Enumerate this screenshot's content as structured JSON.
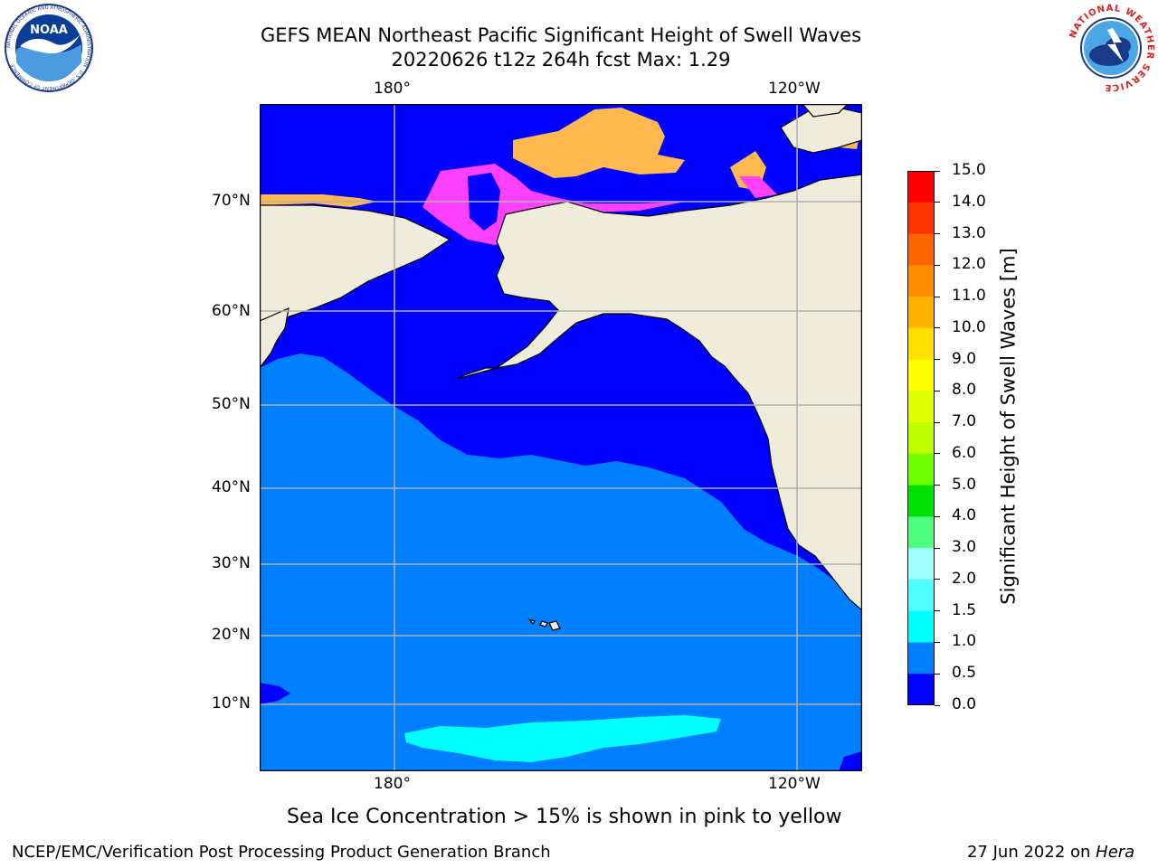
{
  "title": {
    "line1": "GEFS MEAN Northeast Pacific Significant Height of Swell Waves",
    "line2": "20220626 t12z 264h fcst   Max: 1.29"
  },
  "logos": {
    "noaa": {
      "text": "NOAA",
      "ring_text": "NATIONAL OCEANIC AND ATMOSPHERIC ADMINISTRATION · U.S. DEPARTMENT OF COMMERCE"
    },
    "nws": {
      "ring_text": "NATIONAL WEATHER SERVICE"
    }
  },
  "map": {
    "lon_labels": [
      "180°",
      "120°W"
    ],
    "lat_labels": [
      "70°N",
      "60°N",
      "50°N",
      "40°N",
      "30°N",
      "20°N",
      "10°N"
    ],
    "colors": {
      "land": "#efecdc",
      "coast": "#000000",
      "grid": "#b0b0b0",
      "swell_0_0_5": "#0000ff",
      "swell_0_5_1_0": "#0080ff",
      "swell_1_0_1_5": "#00ffff",
      "ice_pink": "#ff40ff",
      "ice_orange": "#ffb84d"
    }
  },
  "colorbar": {
    "label": "Significant Height of Swell Waves [m]",
    "ticks": [
      "15.0",
      "14.0",
      "13.0",
      "12.0",
      "11.0",
      "10.0",
      "9.0",
      "8.0",
      "7.0",
      "6.0",
      "5.0",
      "4.0",
      "3.0",
      "2.0",
      "1.5",
      "1.0",
      "0.5",
      "0.0"
    ],
    "colors": [
      "#ff0000",
      "#ff3300",
      "#ff6600",
      "#ff8c00",
      "#ffb300",
      "#ffe000",
      "#ffff00",
      "#e0ff00",
      "#c0ff00",
      "#70ff00",
      "#00e000",
      "#50ff80",
      "#a0ffff",
      "#50ffff",
      "#00ffff",
      "#0080ff",
      "#0000ff"
    ]
  },
  "note": "Sea Ice Concentration > 15% is shown in pink to yellow",
  "footer": {
    "left": "NCEP/EMC/Verification Post Processing Product Generation Branch",
    "date": "27 Jun 2022 on",
    "host": "Hera"
  }
}
